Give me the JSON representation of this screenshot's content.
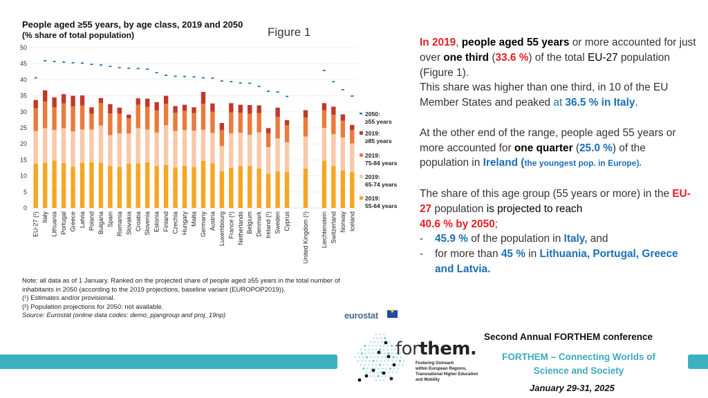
{
  "chart_data": {
    "type": "bar",
    "title": "People aged ≥55 years, by age class, 2019 and 2050",
    "subtitle": "(% share of total population)",
    "figure_label": "Figure 1",
    "ylim": [
      0,
      50
    ],
    "yticks": [
      0,
      5,
      10,
      15,
      20,
      25,
      30,
      35,
      40,
      45,
      50
    ],
    "categories": [
      "EU-27 (¹)",
      "Italy",
      "Lithuania",
      "Portugal",
      "Greece",
      "Latvia",
      "Poland",
      "Bulgaria",
      "Spain",
      "Romania",
      "Slovakia",
      "Croatia",
      "Slovenia",
      "Estonia",
      "Finland",
      "Czechia",
      "Hungary",
      "Malta",
      "Germany",
      "Austria",
      "Luxembourg",
      "France (¹)",
      "Netherlands",
      "Belgium",
      "Denmark",
      "Ireland (¹)",
      "Sweden",
      "Cyprus",
      "",
      "United Kingdom (²)",
      "",
      "Liechtenstein",
      "Switzerland",
      "Norway",
      "Iceland"
    ],
    "series": [
      {
        "name": "2019:\n55-64 years",
        "color": "#f5a623",
        "values": [
          13.8,
          14.1,
          14.8,
          14.0,
          12.9,
          14.1,
          14.3,
          14.1,
          13.1,
          12.8,
          13.8,
          13.9,
          14.3,
          13.1,
          13.4,
          12.6,
          13.2,
          12.8,
          14.7,
          13.9,
          11.5,
          12.5,
          13.1,
          13.1,
          12.3,
          10.7,
          11.4,
          11.2,
          null,
          12.3,
          null,
          14.8,
          13.1,
          11.8,
          11.2
        ]
      },
      {
        "name": "2019:\n65-74 years",
        "color": "#f8c9a8",
        "values": [
          10.2,
          10.8,
          9.5,
          10.9,
          11.0,
          10.4,
          10.2,
          11.6,
          9.6,
          10.5,
          9.4,
          11.0,
          10.2,
          10.4,
          12.4,
          11.4,
          11.1,
          11.3,
          9.7,
          9.5,
          7.8,
          10.8,
          10.4,
          9.7,
          11.3,
          8.3,
          10.3,
          9.3,
          null,
          10.0,
          null,
          10.2,
          9.9,
          10.2,
          8.9
        ]
      },
      {
        "name": "2019:\n75-84 years",
        "color": "#ea7b3d",
        "values": [
          7.1,
          8.3,
          7.1,
          7.7,
          7.8,
          7.5,
          4.9,
          7.0,
          6.8,
          6.1,
          4.8,
          7.3,
          7.0,
          6.9,
          6.7,
          5.7,
          6.0,
          5.5,
          8.1,
          6.6,
          5.0,
          6.5,
          6.2,
          6.6,
          6.0,
          4.3,
          6.7,
          5.3,
          null,
          5.9,
          null,
          5.5,
          6.1,
          5.2,
          4.2
        ]
      },
      {
        "name": "2019:\n≥85 years",
        "color": "#c0392b",
        "values": [
          2.6,
          3.5,
          3.1,
          2.9,
          3.3,
          3.1,
          2.0,
          1.6,
          2.9,
          1.9,
          1.1,
          2.0,
          2.6,
          2.6,
          2.5,
          2.1,
          1.9,
          1.8,
          3.7,
          2.6,
          2.2,
          2.9,
          2.5,
          2.7,
          2.4,
          1.6,
          2.9,
          1.6,
          null,
          2.3,
          null,
          2.2,
          2.5,
          2.0,
          1.6
        ]
      },
      {
        "name": "2050:\n≥55 years",
        "color": "#1f6fb4",
        "values": [
          40.6,
          45.9,
          45.7,
          45.5,
          45.3,
          45.2,
          44.8,
          44.6,
          44.2,
          43.8,
          43.6,
          43.5,
          43.3,
          42.2,
          41.4,
          41.1,
          41.0,
          40.9,
          40.6,
          40.5,
          39.6,
          39.4,
          39.0,
          38.9,
          37.9,
          36.4,
          36.2,
          34.8,
          null,
          null,
          null,
          42.9,
          39.4,
          36.9,
          34.9
        ]
      }
    ]
  },
  "notes": [
    "Note: all data as of 1 January. Ranked on the projected share of people aged ≥55 years in the total number of",
    "inhabitants in 2050 (according to the 2019 projections, baseline variant (EUROPOP2019)).",
    "(¹) Estimates and/or provisional.",
    "(²) Population projections for 2050: not available.",
    "Source: Eurostat (online data codes: demo_pjangroup and proj_19np)"
  ],
  "eurostat_logo": "eurostat",
  "eu_flag_stars": "★",
  "side": {
    "p1_a": "In 2019",
    "p1_b": ", ",
    "p1_c": "people aged 55 years",
    "p1_d": " or more accounted for just over ",
    "p1_e": "one third",
    "p1_f": " (",
    "p1_g": "33.6 %",
    "p1_h": ") of the total ",
    "p1_i": "EU-27",
    "p1_j": " population (Figure 1).",
    "p2_a": "This share was higher than one third, in 10 of the EU Member States and peaked ",
    "p2_b": "at ",
    "p2_c": "36.5 % in Italy",
    "p2_d": ".",
    "p3_a": "At the other end of the range, people aged 55 years or more accounted for ",
    "p3_b": "one quarter",
    "p3_c": " (",
    "p3_d": "25.0 %",
    "p3_e": ") of the population in ",
    "p3_f": "Ireland (",
    "p3_g": "the youngest pop. in Europe)",
    "p3_h": ".",
    "p4_a": "The share of this age group (55 years or more) in the ",
    "p4_b": "EU-27",
    "p4_c": " population ",
    "p4_d": "is projected to reach",
    "p4_e": "40.6 % by 2050",
    "p4_f": ";",
    "dash": "-",
    "b1_a": "45.9 %",
    "b1_b": " of the population in ",
    "b1_c": "Italy,",
    "b1_d": " and",
    "b2_a": "for more than ",
    "b2_b": "45 %",
    "b2_c": " in ",
    "b2_d": "Lithuania, Portugal, Greece and Latvia."
  },
  "forthem": {
    "name_a": "for",
    "name_b": "them.",
    "tagline": [
      "Fostering Outreach",
      "within European Regions,",
      "Transnational Higher Education",
      "and Mobility"
    ]
  },
  "conference": {
    "title": "Second Annual FORTHEM conference",
    "subtitle": "FORTHEM – Connecting Worlds of Science and Society",
    "date": "January 29-31, 2025"
  }
}
